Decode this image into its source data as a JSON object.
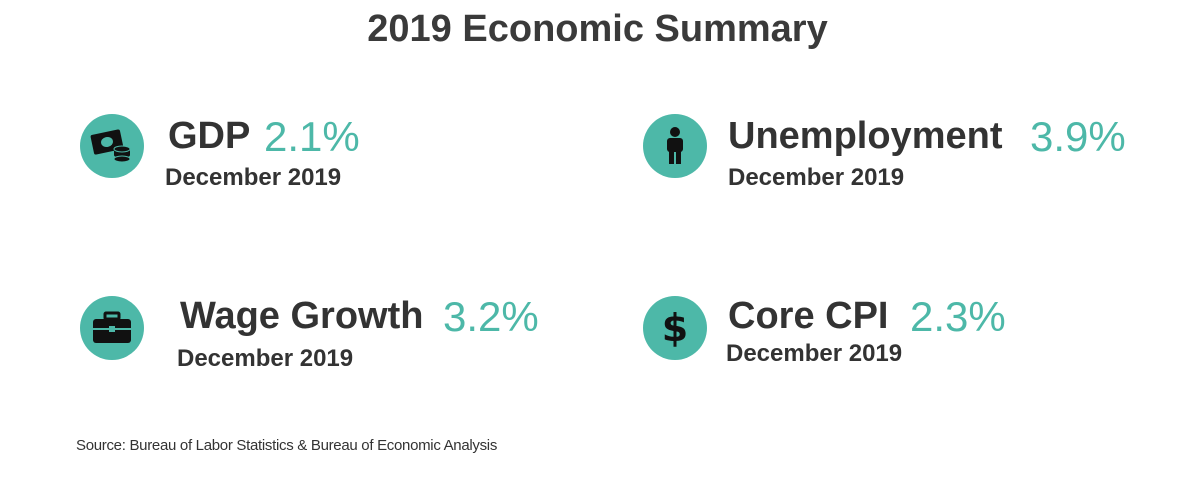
{
  "title": "2019 Economic Summary",
  "metrics": [
    {
      "name": "GDP",
      "value": "2.1%",
      "date": "December 2019",
      "icon": "money-icon"
    },
    {
      "name": "Unemployment",
      "value": "3.9%",
      "date": "December 2019",
      "icon": "person-icon"
    },
    {
      "name": "Wage Growth",
      "value": "3.2%",
      "date": "December 2019",
      "icon": "briefcase-icon"
    },
    {
      "name": "Core CPI",
      "value": "2.3%",
      "date": "December 2019",
      "icon": "dollar-icon"
    }
  ],
  "source": "Source: Bureau of Labor Statistics & Bureau of Economic Analysis",
  "colors": {
    "accent": "#4db8a8",
    "text": "#333333"
  }
}
